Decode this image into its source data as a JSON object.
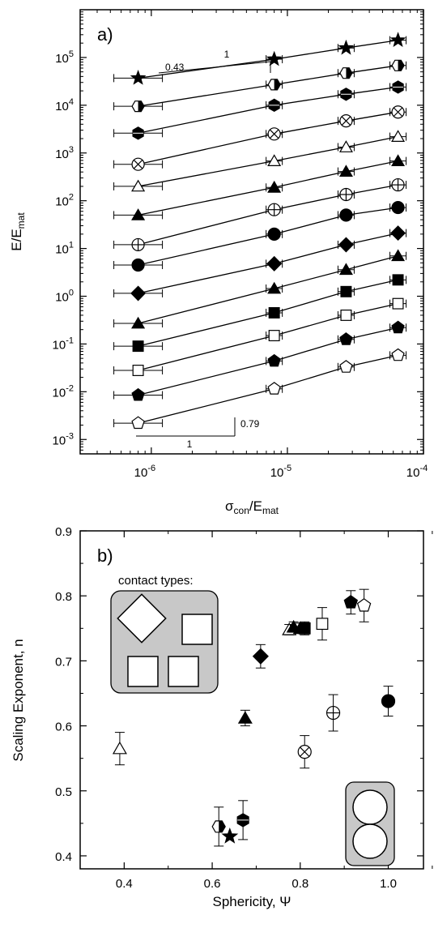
{
  "colors": {
    "axis": "#000000",
    "inset_fill": "#c8c8c8",
    "marker_fill": "#000000",
    "open_fill": "#ffffff"
  },
  "chart_data": [
    {
      "type": "line",
      "panel_label": "a)",
      "xlabel": {
        "main": "σ",
        "sub1": "con",
        "mid": "/E",
        "sub2": "mat"
      },
      "ylabel": {
        "main": "E/E",
        "sub": "mat"
      },
      "x_scale": "log",
      "y_scale": "log",
      "xlim": [
        3e-07,
        0.0001
      ],
      "ylim": [
        0.0005,
        1000000.0
      ],
      "x_ticks": [
        {
          "v": 1e-06,
          "base": "10",
          "exp": "-6"
        },
        {
          "v": 1e-05,
          "base": "10",
          "exp": "-5"
        },
        {
          "v": 0.0001,
          "base": "10",
          "exp": "-4"
        }
      ],
      "y_ticks": [
        {
          "v": 0.001,
          "base": "10",
          "exp": "-3"
        },
        {
          "v": 0.01,
          "base": "10",
          "exp": "-2"
        },
        {
          "v": 0.1,
          "base": "10",
          "exp": "-1"
        },
        {
          "v": 1,
          "base": "10",
          "exp": "0"
        },
        {
          "v": 10,
          "base": "10",
          "exp": "1"
        },
        {
          "v": 100,
          "base": "10",
          "exp": "2"
        },
        {
          "v": 1000,
          "base": "10",
          "exp": "3"
        },
        {
          "v": 10000,
          "base": "10",
          "exp": "4"
        },
        {
          "v": 100000,
          "base": "10",
          "exp": "5"
        }
      ],
      "x": [
        8e-07,
        8e-06,
        2.7e-05,
        6.5e-05
      ],
      "series": [
        {
          "marker": "star",
          "y": [
            37000,
            92000,
            158000,
            230000
          ]
        },
        {
          "marker": "half-hexagon",
          "y": [
            9500,
            27000,
            47000,
            68000
          ]
        },
        {
          "marker": "hexagon-filled",
          "y": [
            2600,
            10000,
            17000,
            24000
          ]
        },
        {
          "marker": "circle-cross",
          "y": [
            580,
            2500,
            4700,
            7200
          ]
        },
        {
          "marker": "triangle-open",
          "y": [
            200,
            680,
            1330,
            2200
          ]
        },
        {
          "marker": "triangle-filled",
          "y": [
            50,
            190,
            410,
            680
          ]
        },
        {
          "marker": "circle-plus",
          "y": [
            12,
            65,
            135,
            215
          ]
        },
        {
          "marker": "circle-filled",
          "y": [
            4.5,
            20,
            50,
            72
          ]
        },
        {
          "marker": "diamond-filled",
          "y": [
            1.15,
            4.8,
            12,
            21
          ]
        },
        {
          "marker": "triangle-filled",
          "y": [
            0.27,
            1.45,
            3.6,
            7.0
          ]
        },
        {
          "marker": "square-filled",
          "y": [
            0.09,
            0.45,
            1.25,
            2.2
          ]
        },
        {
          "marker": "square-open",
          "y": [
            0.028,
            0.15,
            0.4,
            0.7
          ]
        },
        {
          "marker": "pentagon-filled",
          "y": [
            0.0085,
            0.044,
            0.125,
            0.22
          ]
        },
        {
          "marker": "pentagon-open",
          "y": [
            0.0022,
            0.0115,
            0.033,
            0.058
          ]
        }
      ],
      "annotations": [
        {
          "text": "1",
          "slope_role": "run"
        },
        {
          "text": "0.43",
          "slope_role": "rise"
        },
        {
          "text": "1",
          "slope_role": "run"
        },
        {
          "text": "0.79",
          "slope_role": "rise"
        }
      ]
    },
    {
      "type": "scatter",
      "panel_label": "b)",
      "xlabel": "Sphericity, Ψ",
      "ylabel": "Scaling Exponent, n",
      "xlim": [
        0.3,
        1.08
      ],
      "ylim": [
        0.38,
        0.9
      ],
      "x_ticks": [
        {
          "v": 0.4,
          "label": "0.4"
        },
        {
          "v": 0.6,
          "label": "0.6"
        },
        {
          "v": 0.8,
          "label": "0.8"
        },
        {
          "v": 1.0,
          "label": "1.0"
        }
      ],
      "y_ticks": [
        {
          "v": 0.4,
          "label": "0.4"
        },
        {
          "v": 0.5,
          "label": "0.5"
        },
        {
          "v": 0.6,
          "label": "0.6"
        },
        {
          "v": 0.7,
          "label": "0.7"
        },
        {
          "v": 0.8,
          "label": "0.8"
        },
        {
          "v": 0.9,
          "label": "0.9"
        }
      ],
      "points": [
        {
          "marker": "triangle-open",
          "x": 0.39,
          "y": 0.565,
          "err": 0.025
        },
        {
          "marker": "half-hexagon",
          "x": 0.615,
          "y": 0.445,
          "err": 0.03
        },
        {
          "marker": "star",
          "x": 0.64,
          "y": 0.43,
          "err": 0.0
        },
        {
          "marker": "hexagon-filled",
          "x": 0.67,
          "y": 0.455,
          "err": 0.03
        },
        {
          "marker": "triangle-filled",
          "x": 0.675,
          "y": 0.612,
          "err": 0.012
        },
        {
          "marker": "diamond-filled",
          "x": 0.71,
          "y": 0.707,
          "err": 0.018
        },
        {
          "marker": "triangle-open",
          "x": 0.775,
          "y": 0.748,
          "err": 0.008
        },
        {
          "marker": "triangle-filled",
          "x": 0.785,
          "y": 0.752,
          "err": 0.008
        },
        {
          "marker": "triangle-filled",
          "x": 0.8,
          "y": 0.75,
          "err": 0.008
        },
        {
          "marker": "square-filled",
          "x": 0.81,
          "y": 0.75,
          "err": 0.01
        },
        {
          "marker": "square-open",
          "x": 0.85,
          "y": 0.757,
          "err": 0.025
        },
        {
          "marker": "circle-cross",
          "x": 0.81,
          "y": 0.56,
          "err": 0.025
        },
        {
          "marker": "circle-plus",
          "x": 0.875,
          "y": 0.62,
          "err": 0.028
        },
        {
          "marker": "pentagon-filled",
          "x": 0.915,
          "y": 0.79,
          "err": 0.018
        },
        {
          "marker": "pentagon-open",
          "x": 0.945,
          "y": 0.785,
          "err": 0.025
        },
        {
          "marker": "circle-filled",
          "x": 1.0,
          "y": 0.638,
          "err": 0.023
        }
      ],
      "inset_label": "contact types:"
    }
  ]
}
